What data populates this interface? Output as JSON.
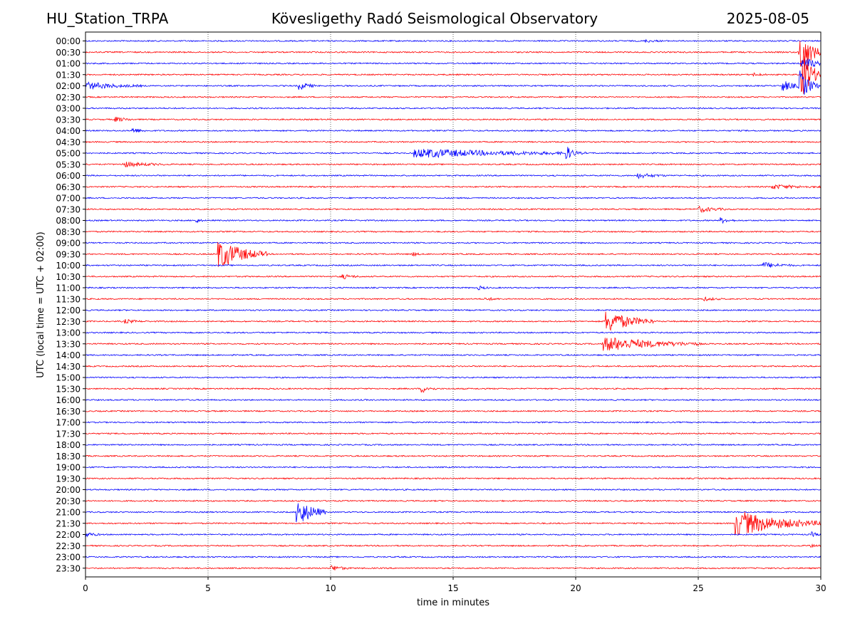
{
  "header": {
    "station": "HU_Station_TRPA",
    "observatory": "Kövesligethy Radó Seismological Observatory",
    "date": "2025-08-05"
  },
  "chart_data": {
    "type": "line",
    "title": "Kövesligethy Radó Seismological Observatory",
    "xlabel": "time in minutes",
    "ylabel": "UTC (local time = UTC + 02:00)",
    "xlim": [
      0,
      30
    ],
    "xticks": [
      0,
      5,
      10,
      15,
      20,
      25,
      30
    ],
    "grid": "vertical dotted lines at 5-minute ticks",
    "row_labels": [
      "00:00",
      "00:30",
      "01:00",
      "01:30",
      "02:00",
      "02:30",
      "03:00",
      "03:30",
      "04:00",
      "04:30",
      "05:00",
      "05:30",
      "06:00",
      "06:30",
      "07:00",
      "07:30",
      "08:00",
      "08:30",
      "09:00",
      "09:30",
      "10:00",
      "10:30",
      "11:00",
      "11:30",
      "12:00",
      "12:30",
      "13:00",
      "13:30",
      "14:00",
      "14:30",
      "15:00",
      "15:30",
      "16:00",
      "16:30",
      "17:00",
      "17:30",
      "18:00",
      "18:30",
      "19:00",
      "19:30",
      "20:00",
      "20:30",
      "21:00",
      "21:30",
      "22:00",
      "22:30",
      "23:00",
      "23:30"
    ],
    "colors": [
      "#0000ff",
      "#ff0000"
    ],
    "events": [
      {
        "row": 0,
        "t": 22.8,
        "dur": 0.8,
        "amp": 0.15
      },
      {
        "row": 1,
        "t": 29.1,
        "dur": 0.9,
        "amp": 3.0
      },
      {
        "row": 2,
        "t": 29.2,
        "dur": 0.8,
        "amp": 1.2
      },
      {
        "row": 3,
        "t": 27.2,
        "dur": 0.6,
        "amp": 0.2
      },
      {
        "row": 3,
        "t": 29.2,
        "dur": 0.8,
        "amp": 3.0
      },
      {
        "row": 4,
        "t": 0.0,
        "dur": 2.3,
        "amp": 0.45
      },
      {
        "row": 4,
        "t": 8.7,
        "dur": 0.7,
        "amp": 0.55
      },
      {
        "row": 4,
        "t": 28.4,
        "dur": 0.8,
        "amp": 0.75
      },
      {
        "row": 4,
        "t": 29.1,
        "dur": 0.8,
        "amp": 2.0
      },
      {
        "row": 7,
        "t": 1.2,
        "dur": 0.8,
        "amp": 0.3
      },
      {
        "row": 8,
        "t": 1.9,
        "dur": 0.6,
        "amp": 0.35
      },
      {
        "row": 10,
        "t": 13.4,
        "dur": 7.0,
        "amp": 0.55
      },
      {
        "row": 10,
        "t": 19.6,
        "dur": 0.5,
        "amp": 0.8
      },
      {
        "row": 11,
        "t": 1.5,
        "dur": 1.8,
        "amp": 0.3
      },
      {
        "row": 12,
        "t": 22.5,
        "dur": 1.2,
        "amp": 0.3
      },
      {
        "row": 13,
        "t": 28.0,
        "dur": 2.0,
        "amp": 0.25
      },
      {
        "row": 15,
        "t": 25.0,
        "dur": 1.2,
        "amp": 0.35
      },
      {
        "row": 16,
        "t": 4.5,
        "dur": 0.3,
        "amp": 0.3
      },
      {
        "row": 16,
        "t": 25.9,
        "dur": 0.6,
        "amp": 0.35
      },
      {
        "row": 19,
        "t": 5.4,
        "dur": 2.0,
        "amp": 1.8
      },
      {
        "row": 19,
        "t": 13.3,
        "dur": 0.4,
        "amp": 0.25
      },
      {
        "row": 20,
        "t": 27.6,
        "dur": 1.3,
        "amp": 0.35
      },
      {
        "row": 21,
        "t": 10.4,
        "dur": 0.8,
        "amp": 0.3
      },
      {
        "row": 22,
        "t": 16.0,
        "dur": 0.5,
        "amp": 0.25
      },
      {
        "row": 23,
        "t": 16.3,
        "dur": 0.6,
        "amp": 0.2
      },
      {
        "row": 23,
        "t": 25.2,
        "dur": 0.8,
        "amp": 0.2
      },
      {
        "row": 25,
        "t": 1.6,
        "dur": 0.7,
        "amp": 0.25
      },
      {
        "row": 25,
        "t": 21.2,
        "dur": 2.0,
        "amp": 1.4
      },
      {
        "row": 27,
        "t": 21.1,
        "dur": 4.0,
        "amp": 0.9
      },
      {
        "row": 31,
        "t": 13.7,
        "dur": 0.6,
        "amp": 0.5
      },
      {
        "row": 42,
        "t": 8.6,
        "dur": 1.2,
        "amp": 1.8
      },
      {
        "row": 43,
        "t": 26.5,
        "dur": 3.5,
        "amp": 1.6
      },
      {
        "row": 44,
        "t": 0.0,
        "dur": 0.6,
        "amp": 0.3
      },
      {
        "row": 44,
        "t": 29.6,
        "dur": 0.4,
        "amp": 0.3
      },
      {
        "row": 45,
        "t": 29.5,
        "dur": 0.5,
        "amp": 0.2
      },
      {
        "row": 47,
        "t": 10.0,
        "dur": 0.8,
        "amp": 0.35
      }
    ]
  }
}
